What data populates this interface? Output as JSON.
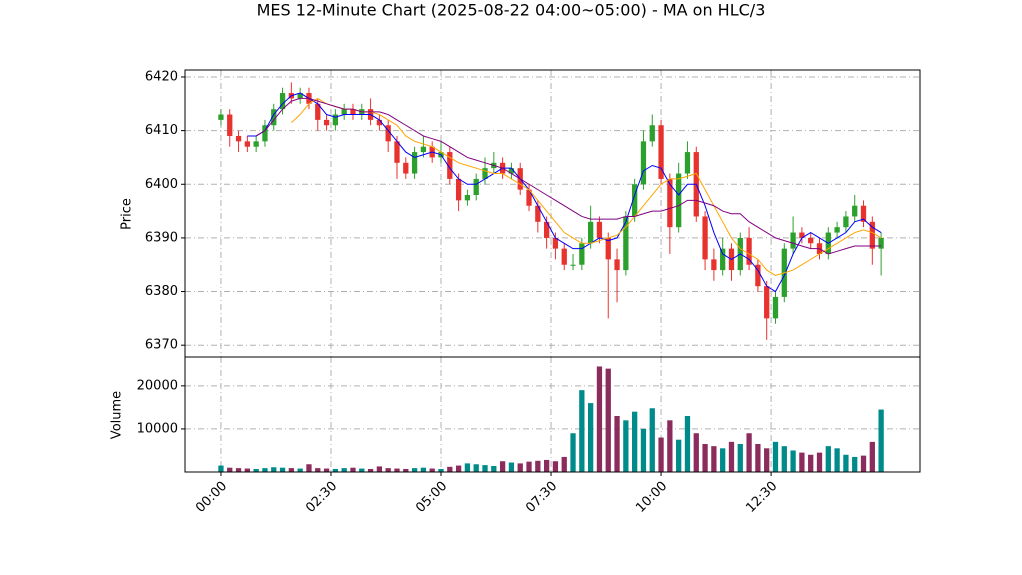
{
  "chart_data": {
    "type": "candlestick",
    "title": "MES 12-Minute Chart (2025-08-22 04:00~05:00) - MA on HLC/3",
    "ylabel": "Price",
    "grid": true,
    "x": [
      0,
      12,
      24,
      36,
      48,
      60,
      72,
      84,
      96,
      108,
      120,
      132,
      144,
      156,
      168,
      180,
      192,
      204,
      216,
      228,
      240,
      252,
      264,
      276,
      288,
      300,
      312,
      324,
      336,
      348,
      360,
      372,
      384,
      396,
      408,
      420,
      432,
      444,
      456,
      468,
      480,
      492,
      504,
      516,
      528,
      540,
      552,
      564,
      576,
      588,
      600,
      612,
      624,
      636,
      648,
      660,
      672,
      684,
      696,
      708,
      720,
      732,
      744,
      756,
      768,
      780,
      792,
      804,
      816,
      828,
      840,
      852,
      864,
      876,
      888,
      900
    ],
    "xlim": [
      -49,
      953
    ],
    "xticks": [
      {
        "value": 0,
        "label": "00:00"
      },
      {
        "value": 150,
        "label": "02:30"
      },
      {
        "value": 300,
        "label": "05:00"
      },
      {
        "value": 450,
        "label": "07:30"
      },
      {
        "value": 600,
        "label": "10:00"
      },
      {
        "value": 750,
        "label": "12:30"
      }
    ],
    "ylim": [
      6367.8,
      6421.3
    ],
    "yticks": [
      6370,
      6380,
      6390,
      6400,
      6410,
      6420
    ],
    "up_color": "#2ca02c",
    "down_color": "#e8322e",
    "open": [
      6412,
      6413,
      6409,
      6408,
      6407,
      6408,
      6411,
      6414,
      6417,
      6416,
      6417,
      6415,
      6412,
      6411,
      6413,
      6414,
      6413,
      6414,
      6412,
      6411,
      6408,
      6404,
      6402,
      6406,
      6407,
      6405,
      6406,
      6401,
      6397,
      6398,
      6401,
      6403,
      6404,
      6402,
      6403,
      6399,
      6396,
      6393,
      6390,
      6388,
      6385,
      6385,
      6389,
      6393,
      6390,
      6386,
      6384,
      6394,
      6400,
      6408,
      6411,
      6401,
      6392,
      6402,
      6406,
      6394,
      6386,
      6384,
      6388,
      6384,
      6390,
      6385,
      6381,
      6375,
      6379,
      6388,
      6391,
      6390,
      6389,
      6387,
      6391,
      6392,
      6394,
      6396,
      6393,
      6388
    ],
    "high": [
      6414,
      6414,
      6410,
      6409,
      6409,
      6412,
      6415,
      6418,
      6419,
      6418,
      6418,
      6416,
      6413,
      6414,
      6415,
      6415,
      6415,
      6416,
      6413,
      6412,
      6409,
      6405,
      6407,
      6409,
      6408,
      6408,
      6407,
      6402,
      6399,
      6402,
      6405,
      6406,
      6405,
      6404,
      6404,
      6400,
      6397,
      6394,
      6391,
      6389,
      6387,
      6390,
      6396,
      6394,
      6391,
      6388,
      6395,
      6401,
      6410,
      6413,
      6412,
      6402,
      6404,
      6408,
      6407,
      6395,
      6388,
      6390,
      6389,
      6391,
      6392,
      6386,
      6382,
      6380,
      6389,
      6394,
      6392,
      6391,
      6390,
      6392,
      6393,
      6395,
      6398,
      6397,
      6394,
      6391
    ],
    "low": [
      6411,
      6407,
      6406,
      6406,
      6406,
      6407,
      6410,
      6413,
      6415,
      6415,
      6414,
      6410,
      6410,
      6410,
      6412,
      6412,
      6412,
      6411,
      6410,
      6406,
      6401,
      6401,
      6401,
      6405,
      6404,
      6404,
      6400,
      6395,
      6396,
      6397,
      6400,
      6402,
      6401,
      6401,
      6398,
      6395,
      6391,
      6388,
      6386,
      6384,
      6384,
      6384,
      6388,
      6389,
      6375,
      6378,
      6383,
      6393,
      6399,
      6407,
      6400,
      6387,
      6391,
      6401,
      6393,
      6384,
      6382,
      6383,
      6382,
      6383,
      6384,
      6380,
      6371,
      6374,
      6378,
      6387,
      6389,
      6388,
      6386,
      6386,
      6390,
      6391,
      6393,
      6392,
      6385,
      6383
    ],
    "close": [
      6413,
      6409,
      6408,
      6407,
      6408,
      6411,
      6414,
      6417,
      6416,
      6417,
      6415,
      6412,
      6411,
      6413,
      6414,
      6413,
      6414,
      6412,
      6411,
      6408,
      6404,
      6402,
      6406,
      6407,
      6405,
      6406,
      6401,
      6397,
      6398,
      6401,
      6403,
      6404,
      6402,
      6403,
      6399,
      6396,
      6393,
      6390,
      6388,
      6385,
      6385,
      6389,
      6393,
      6390,
      6386,
      6384,
      6394,
      6400,
      6408,
      6411,
      6401,
      6392,
      6402,
      6406,
      6394,
      6386,
      6384,
      6388,
      6384,
      6390,
      6385,
      6381,
      6375,
      6379,
      6388,
      6391,
      6390,
      6389,
      6387,
      6391,
      6392,
      6394,
      6396,
      6393,
      6388,
      6390
    ],
    "series": [
      {
        "color": "#0000ff",
        "values": [
          null,
          null,
          null,
          6409,
          6409,
          6410,
          6413,
          6415,
          6416.5,
          6417,
          6416,
          6415,
          6413,
          6412.5,
          6413,
          6413,
          6413,
          6413,
          6412,
          6410,
          6408,
          6406,
          6405,
          6405.5,
          6406,
          6405.5,
          6403,
          6401,
          6400,
          6400,
          6401,
          6402,
          6403,
          6403,
          6401,
          6399,
          6396,
          6393,
          6390,
          6389,
          6388,
          6388,
          6389,
          6390,
          6389.5,
          6390,
          6393,
          6398,
          6402.5,
          6403.5,
          6403,
          6400,
          6398,
          6400,
          6400,
          6396,
          6391,
          6387,
          6386,
          6387,
          6386,
          6384,
          6381,
          6380,
          6383,
          6387,
          6390,
          6391,
          6390,
          6389,
          6390,
          6391,
          6393,
          6393.5,
          6392,
          6391
        ]
      },
      {
        "color": "#ffa500",
        "values": [
          null,
          null,
          null,
          null,
          null,
          null,
          null,
          null,
          6411.5,
          6413,
          6415,
          6416,
          6415,
          6414.5,
          6414,
          6414,
          6413.5,
          6413.5,
          6413,
          6412,
          6411,
          6409,
          6408,
          6407.5,
          6407,
          6406,
          6405,
          6404,
          6403.5,
          6403,
          6402.5,
          6402,
          6402,
          6401,
          6400,
          6399,
          6397,
          6395,
          6393,
          6391,
          6390,
          6389,
          6389,
          6389.5,
          6390,
          6390.5,
          6392,
          6394,
          6396,
          6398,
          6400,
          6401,
          6401,
          6401.5,
          6402,
          6399,
          6396,
          6393,
          6390,
          6388,
          6387,
          6386,
          6384,
          6383,
          6383.5,
          6384,
          6385,
          6386,
          6387,
          6388,
          6389,
          6390,
          6391,
          6391.5,
          6391,
          6390
        ]
      },
      {
        "color": "#800080",
        "values": [
          null,
          null,
          null,
          null,
          6409,
          6410,
          6412,
          6414,
          6415.5,
          6416,
          6416,
          6415.5,
          6415,
          6414.5,
          6414,
          6414,
          6413.5,
          6413.5,
          6413.5,
          6413,
          6412,
          6411,
          6410,
          6409,
          6408.5,
          6408,
          6407,
          6406,
          6405,
          6404.5,
          6404,
          6403.5,
          6403,
          6402,
          6401,
          6400,
          6399,
          6398,
          6397,
          6396,
          6395,
          6394,
          6393.5,
          6393.5,
          6393.5,
          6393.5,
          6394,
          6394,
          6394.5,
          6395,
          6395,
          6395.5,
          6396,
          6397,
          6397,
          6396.5,
          6396,
          6395,
          6394.5,
          6394.5,
          6393,
          6392,
          6391,
          6390,
          6389.5,
          6389,
          6388.5,
          6388,
          6388,
          6387,
          6387.5,
          6388,
          6388.5,
          6388.5,
          6388.5,
          6388.5
        ]
      }
    ],
    "volume": {
      "ylabel": "Volume",
      "ylim": [
        0,
        26700
      ],
      "yticks": [
        10000,
        20000
      ],
      "up_color": "#008b8b",
      "down_color": "#8b2c5c",
      "values": [
        1500,
        1000,
        900,
        800,
        700,
        900,
        1100,
        1000,
        900,
        800,
        1800,
        900,
        800,
        700,
        900,
        1000,
        800,
        700,
        1300,
        900,
        800,
        700,
        900,
        1000,
        800,
        700,
        1200,
        1500,
        2000,
        1800,
        1600,
        1400,
        2500,
        2200,
        2000,
        2400,
        2600,
        2800,
        2500,
        3500,
        9000,
        19000,
        16000,
        24500,
        24000,
        13000,
        12000,
        14000,
        10000,
        14800,
        8000,
        12000,
        7500,
        13000,
        9000,
        6500,
        6000,
        5500,
        7000,
        6500,
        9000,
        6500,
        5500,
        7000,
        6000,
        5000,
        4500,
        4000,
        4500,
        6000,
        5500,
        4000,
        3500,
        3800,
        7000,
        14500
      ]
    }
  }
}
